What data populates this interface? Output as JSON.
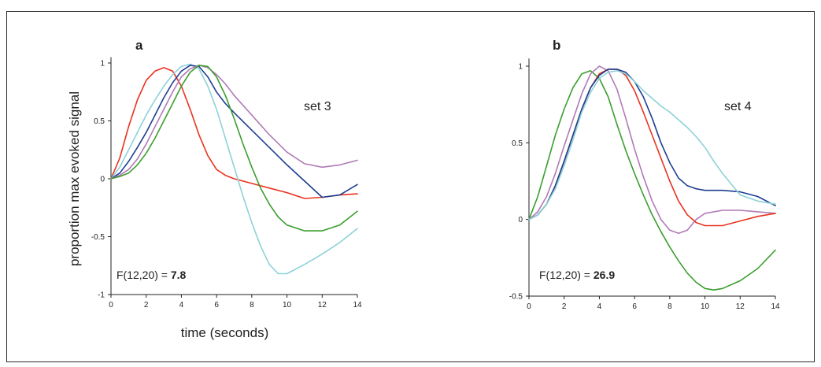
{
  "chart_data": [
    {
      "type": "line",
      "panel": "a",
      "annotation": "set 3",
      "stat_label": "F(12,20) = ",
      "stat_value": "7.8",
      "xlabel": "time (seconds)",
      "ylabel": "proportion max evoked signal",
      "xlim": [
        0,
        14
      ],
      "ylim": [
        -1,
        1.05
      ],
      "xticks": [
        "0",
        "2",
        "4",
        "6",
        "8",
        "10",
        "12",
        "14"
      ],
      "yticks": [
        "-1",
        "-0.5",
        "0",
        "0.5",
        "1"
      ],
      "series": [
        {
          "color": "#e8331f",
          "x": [
            0,
            0.5,
            1,
            1.5,
            2,
            2.5,
            3,
            3.5,
            4,
            4.5,
            5,
            5.5,
            6,
            6.5,
            7,
            8,
            9,
            10,
            11,
            12,
            13,
            14
          ],
          "y": [
            0,
            0.18,
            0.45,
            0.68,
            0.85,
            0.93,
            0.96,
            0.93,
            0.8,
            0.6,
            0.38,
            0.2,
            0.08,
            0.03,
            0.0,
            -0.04,
            -0.08,
            -0.12,
            -0.17,
            -0.16,
            -0.14,
            -0.13
          ]
        },
        {
          "color": "#8cd2d8",
          "x": [
            0,
            0.5,
            1,
            1.5,
            2,
            2.5,
            3,
            3.5,
            4,
            4.5,
            5,
            5.5,
            6,
            6.5,
            7,
            7.5,
            8,
            8.5,
            9,
            9.5,
            10,
            11,
            12,
            13,
            14
          ],
          "y": [
            0,
            0.1,
            0.25,
            0.4,
            0.55,
            0.68,
            0.8,
            0.9,
            0.97,
            0.99,
            0.95,
            0.8,
            0.6,
            0.35,
            0.1,
            -0.15,
            -0.38,
            -0.58,
            -0.74,
            -0.82,
            -0.82,
            -0.74,
            -0.65,
            -0.55,
            -0.43
          ]
        },
        {
          "color": "#1d3e92",
          "x": [
            0,
            0.5,
            1,
            1.5,
            2,
            2.5,
            3,
            3.5,
            4,
            4.5,
            5,
            5.5,
            6,
            6.5,
            7,
            8,
            9,
            10,
            11,
            12,
            13,
            14
          ],
          "y": [
            0,
            0.05,
            0.15,
            0.27,
            0.4,
            0.55,
            0.7,
            0.83,
            0.93,
            0.98,
            0.97,
            0.88,
            0.75,
            0.65,
            0.57,
            0.42,
            0.27,
            0.12,
            -0.02,
            -0.16,
            -0.14,
            -0.05
          ]
        },
        {
          "color": "#b07ab6",
          "x": [
            0,
            0.5,
            1,
            1.5,
            2,
            2.5,
            3,
            3.5,
            4,
            4.5,
            5,
            5.5,
            6,
            6.5,
            7,
            8,
            9,
            10,
            11,
            12,
            13,
            14
          ],
          "y": [
            0,
            0.03,
            0.08,
            0.17,
            0.3,
            0.45,
            0.6,
            0.75,
            0.88,
            0.95,
            0.98,
            0.96,
            0.9,
            0.82,
            0.72,
            0.55,
            0.38,
            0.23,
            0.13,
            0.1,
            0.12,
            0.16
          ]
        },
        {
          "color": "#3a9e2e",
          "x": [
            0,
            0.5,
            1,
            1.5,
            2,
            2.5,
            3,
            3.5,
            4,
            4.5,
            5,
            5.5,
            6,
            6.5,
            7,
            7.5,
            8,
            8.5,
            9,
            9.5,
            10,
            11,
            12,
            13,
            14
          ],
          "y": [
            0,
            0.02,
            0.05,
            0.12,
            0.22,
            0.35,
            0.5,
            0.65,
            0.8,
            0.92,
            0.98,
            0.97,
            0.88,
            0.72,
            0.52,
            0.3,
            0.1,
            -0.08,
            -0.22,
            -0.33,
            -0.4,
            -0.45,
            -0.45,
            -0.4,
            -0.28
          ]
        }
      ]
    },
    {
      "type": "line",
      "panel": "b",
      "annotation": "set 4",
      "stat_label": "F(12,20) = ",
      "stat_value": "26.9",
      "xlabel": "",
      "ylabel": "",
      "xlim": [
        0,
        14
      ],
      "ylim": [
        -0.5,
        1.05
      ],
      "xticks": [
        "0",
        "2",
        "4",
        "6",
        "8",
        "10",
        "12",
        "14"
      ],
      "yticks": [
        "-0.5",
        "0",
        "0.5",
        "1"
      ],
      "series": [
        {
          "color": "#3a9e2e",
          "x": [
            0,
            0.5,
            1,
            1.5,
            2,
            2.5,
            3,
            3.5,
            4,
            4.5,
            5,
            5.5,
            6,
            6.5,
            7,
            7.5,
            8,
            8.5,
            9,
            9.5,
            10,
            10.5,
            11,
            12,
            13,
            14
          ],
          "y": [
            0,
            0.15,
            0.35,
            0.55,
            0.72,
            0.86,
            0.95,
            0.97,
            0.92,
            0.8,
            0.62,
            0.45,
            0.3,
            0.16,
            0.03,
            -0.08,
            -0.18,
            -0.27,
            -0.35,
            -0.41,
            -0.45,
            -0.46,
            -0.45,
            -0.4,
            -0.32,
            -0.2
          ]
        },
        {
          "color": "#b07ab6",
          "x": [
            0,
            0.5,
            1,
            1.5,
            2,
            2.5,
            3,
            3.5,
            4,
            4.5,
            5,
            5.5,
            6,
            6.5,
            7,
            7.5,
            8,
            8.5,
            9,
            9.5,
            10,
            11,
            12,
            13,
            14
          ],
          "y": [
            0,
            0.05,
            0.15,
            0.3,
            0.48,
            0.65,
            0.82,
            0.95,
            1.0,
            0.97,
            0.85,
            0.66,
            0.46,
            0.28,
            0.12,
            0.0,
            -0.07,
            -0.09,
            -0.07,
            0.0,
            0.04,
            0.06,
            0.06,
            0.05,
            0.04
          ]
        },
        {
          "color": "#e8331f",
          "x": [
            0,
            0.5,
            1,
            1.5,
            2,
            2.5,
            3,
            3.5,
            4,
            4.5,
            5,
            5.5,
            6,
            6.5,
            7,
            7.5,
            8,
            8.5,
            9,
            9.5,
            10,
            11,
            12,
            13,
            14
          ],
          "y": [
            0,
            0.03,
            0.1,
            0.22,
            0.38,
            0.55,
            0.72,
            0.86,
            0.95,
            0.98,
            0.98,
            0.94,
            0.84,
            0.7,
            0.55,
            0.4,
            0.25,
            0.12,
            0.03,
            -0.02,
            -0.04,
            -0.04,
            -0.01,
            0.02,
            0.04
          ]
        },
        {
          "color": "#1d3e92",
          "x": [
            0,
            0.5,
            1,
            1.5,
            2,
            2.5,
            3,
            3.5,
            4,
            4.5,
            5,
            5.5,
            6,
            6.5,
            7,
            7.5,
            8,
            8.5,
            9,
            9.5,
            10,
            11,
            12,
            13,
            14
          ],
          "y": [
            0,
            0.03,
            0.1,
            0.22,
            0.38,
            0.55,
            0.72,
            0.86,
            0.94,
            0.98,
            0.98,
            0.96,
            0.9,
            0.8,
            0.66,
            0.5,
            0.37,
            0.27,
            0.22,
            0.2,
            0.19,
            0.19,
            0.18,
            0.15,
            0.09
          ]
        },
        {
          "color": "#8cd2d8",
          "x": [
            0,
            0.5,
            1,
            1.5,
            2,
            2.5,
            3,
            3.5,
            4,
            4.5,
            5,
            5.5,
            6,
            6.5,
            7,
            7.5,
            8,
            8.5,
            9,
            9.5,
            10,
            10.5,
            11,
            12,
            13,
            14
          ],
          "y": [
            0,
            0.03,
            0.1,
            0.2,
            0.35,
            0.52,
            0.7,
            0.83,
            0.92,
            0.96,
            0.97,
            0.95,
            0.9,
            0.84,
            0.79,
            0.74,
            0.7,
            0.65,
            0.6,
            0.54,
            0.47,
            0.38,
            0.3,
            0.16,
            0.12,
            0.1
          ]
        }
      ]
    }
  ]
}
